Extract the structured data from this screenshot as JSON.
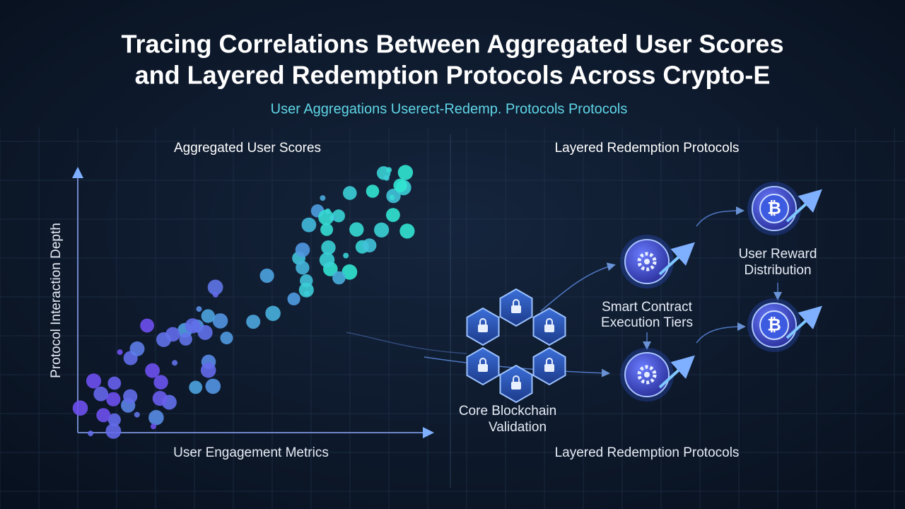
{
  "header": {
    "title_lines": [
      "Tracing Correlations Between Aggregated User Scores",
      "and Layered Redemption Protocols Across Crypto-E"
    ],
    "subtitle": "User Aggregations Userect-Redemp. Protocols Protocols"
  },
  "left_panel": {
    "title": "Aggregated User Scores",
    "y_axis_label": "Protocol Interaction Depth",
    "x_axis_label": "User Engagement Metrics"
  },
  "right_panel": {
    "title": "Layered Redemption Protocols",
    "footer": "Layered Redemption Protocols",
    "nodes": [
      {
        "label_lines": [
          "Core Blockchain",
          "Validation"
        ]
      },
      {
        "label_lines": [
          "Smart Contract",
          "Execution Tiers"
        ]
      },
      {
        "label_lines": [
          "User Reward",
          "Distribution"
        ]
      }
    ]
  }
}
